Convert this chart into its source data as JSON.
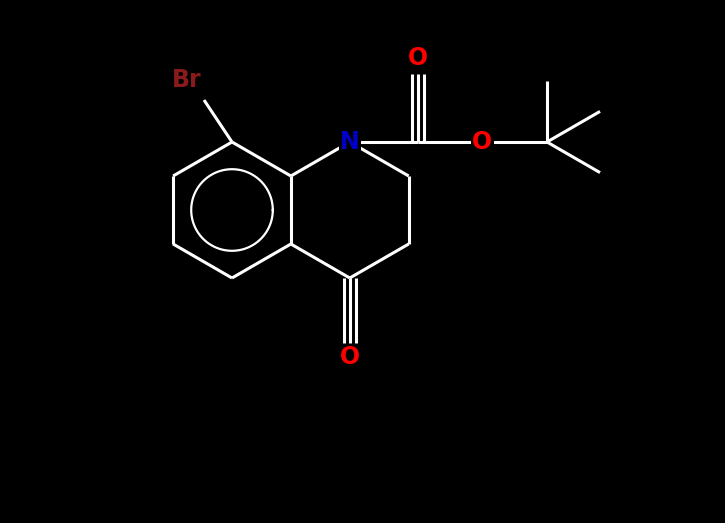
{
  "background_color": "#000000",
  "bond_color": "#ffffff",
  "bond_width": 2.2,
  "atom_colors": {
    "Br": "#8b1a1a",
    "O": "#ff0000",
    "N": "#0000cd",
    "C": "#ffffff"
  },
  "font_size_atom": 15,
  "figsize": [
    7.25,
    5.23
  ],
  "dpi": 100
}
